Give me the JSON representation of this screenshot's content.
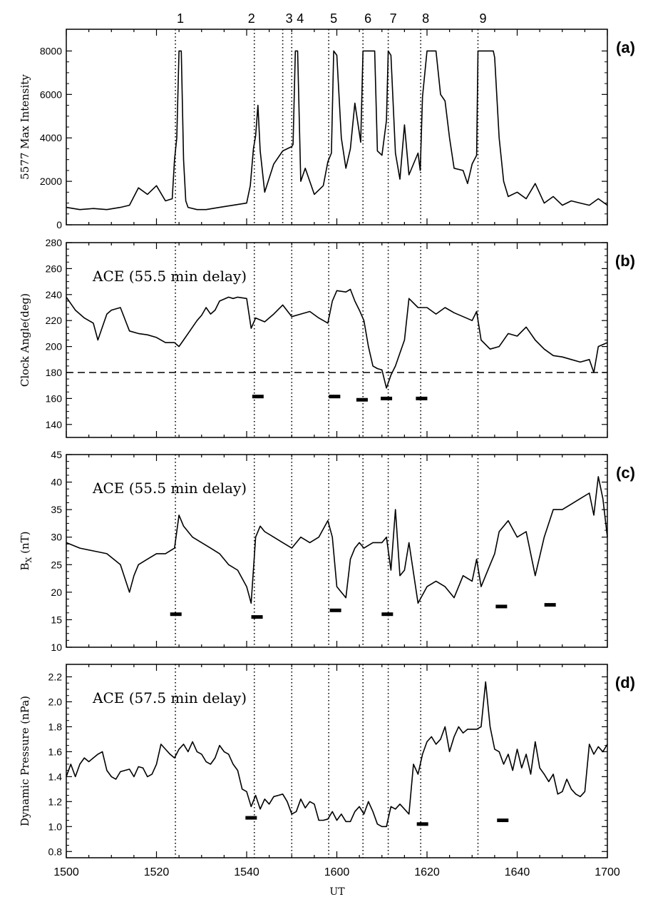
{
  "figure": {
    "event_numbers": [
      "1",
      "2",
      "3",
      "4",
      "5",
      "6",
      "7",
      "8",
      "9"
    ],
    "event_times": [
      1524.2,
      1541.7,
      1548.0,
      1550.0,
      1558.2,
      1605.8,
      1611.4,
      1618.6,
      1631.3
    ],
    "x_axis": {
      "label": "UT",
      "ticks": [
        "1500",
        "1520",
        "1540",
        "1600",
        "1620",
        "1640",
        "1700"
      ]
    }
  },
  "chart_data": [
    {
      "type": "line",
      "panel_label": "(a)",
      "ylabel": "5577 Max Intensity",
      "ylim": [
        0,
        9000
      ],
      "yticks": [
        "0",
        "2000",
        "4000",
        "6000",
        "8000"
      ],
      "grid": false,
      "x": [
        0,
        3,
        6,
        9,
        12,
        14,
        16,
        18,
        20,
        22,
        23.5,
        24,
        24.5,
        25,
        25.5,
        26,
        26.5,
        27,
        29,
        31,
        34,
        37,
        40,
        40.8,
        41.5,
        42,
        42.5,
        43,
        44,
        46,
        48,
        50,
        50.3,
        50.8,
        51.3,
        52,
        53,
        55,
        57,
        58,
        58.8,
        59.3,
        60,
        61,
        62,
        63,
        64,
        65.3,
        65.8,
        66,
        67.5,
        68,
        68.4,
        69,
        70,
        71,
        71.4,
        72,
        73,
        74,
        75,
        76,
        78,
        78.5,
        79,
        80,
        81,
        82,
        83,
        84,
        85,
        86,
        88,
        89,
        90,
        91,
        91.3,
        92,
        93,
        94,
        94.7,
        95,
        96,
        97,
        98,
        100,
        102,
        104,
        106,
        108,
        110,
        112,
        114,
        116,
        118,
        120
      ],
      "values": [
        800,
        700,
        750,
        700,
        800,
        900,
        1700,
        1400,
        1800,
        1100,
        1200,
        3000,
        4000,
        8000,
        8000,
        3000,
        1100,
        800,
        700,
        700,
        800,
        900,
        1000,
        1800,
        3500,
        4100,
        5500,
        3400,
        1500,
        2800,
        3400,
        3600,
        3700,
        8000,
        8000,
        2000,
        2600,
        1400,
        1800,
        2900,
        3300,
        8000,
        7800,
        4000,
        2600,
        3500,
        5600,
        3800,
        8000,
        8000,
        8000,
        8000,
        8000,
        3400,
        3200,
        4800,
        8000,
        7800,
        3300,
        2100,
        4600,
        2300,
        3300,
        2500,
        5900,
        8000,
        8000,
        8000,
        6000,
        5700,
        4000,
        2600,
        2500,
        1900,
        2800,
        3200,
        8000,
        8000,
        8000,
        8000,
        8000,
        7700,
        4000,
        2000,
        1300,
        1500,
        1200,
        1900,
        1000,
        1300,
        900,
        1100,
        1000,
        900,
        1200,
        900
      ]
    },
    {
      "type": "line",
      "panel_label": "(b)",
      "annotation": "ACE (55.5 min delay)",
      "ylabel": "Clock Angle(deg)",
      "ylim": [
        130,
        280
      ],
      "yticks": [
        "140",
        "160",
        "180",
        "200",
        "220",
        "240",
        "260",
        "280"
      ],
      "reference_line": 180,
      "grid": false,
      "x": [
        0,
        2,
        4,
        6,
        7,
        8,
        9,
        10,
        12,
        14,
        16,
        18,
        20,
        22,
        24,
        25,
        26,
        27,
        28,
        29,
        30,
        31,
        32,
        33,
        34,
        36,
        37,
        38,
        40,
        41,
        42,
        44,
        46,
        48,
        50,
        52,
        54,
        56,
        58,
        59,
        60,
        62,
        63,
        64,
        65,
        66,
        67,
        68,
        69,
        70,
        71,
        72,
        73,
        74,
        75,
        76,
        78,
        80,
        82,
        84,
        86,
        88,
        90,
        91,
        92,
        94,
        96,
        98,
        100,
        102,
        104,
        106,
        108,
        110,
        112,
        114,
        116,
        117,
        118,
        120
      ],
      "values": [
        238,
        228,
        222,
        218,
        205,
        215,
        225,
        228,
        230,
        212,
        210,
        209,
        207,
        203,
        203,
        200,
        205,
        210,
        215,
        220,
        224,
        230,
        225,
        228,
        235,
        238,
        237,
        238,
        237,
        214,
        222,
        219,
        225,
        232,
        223,
        225,
        227,
        222,
        218,
        235,
        243,
        242,
        244,
        235,
        228,
        220,
        200,
        185,
        183,
        182,
        168,
        178,
        185,
        195,
        205,
        237,
        230,
        230,
        225,
        230,
        226,
        223,
        220,
        227,
        205,
        198,
        200,
        210,
        208,
        215,
        205,
        198,
        193,
        192,
        190,
        188,
        190,
        180,
        200,
        203
      ]
    },
    {
      "type": "line",
      "panel_label": "(c)",
      "annotation": "ACE (55.5 min delay)",
      "ylabel": "B",
      "ylabel_subscript": "X",
      "ylabel_unit": "(nT)",
      "ylim": [
        10,
        45
      ],
      "yticks": [
        "10",
        "15",
        "20",
        "25",
        "30",
        "35",
        "40",
        "45"
      ],
      "grid": false,
      "x": [
        0,
        3,
        6,
        9,
        12,
        14,
        15,
        16,
        18,
        20,
        22,
        24,
        25,
        26,
        28,
        30,
        32,
        34,
        36,
        38,
        40,
        41,
        42,
        43,
        44,
        46,
        48,
        50,
        52,
        54,
        56,
        58,
        59,
        60,
        61,
        62,
        63,
        64,
        65,
        66,
        68,
        70,
        71,
        72,
        73,
        74,
        75,
        76,
        78,
        80,
        82,
        84,
        86,
        88,
        90,
        91,
        92,
        94,
        95,
        96,
        98,
        100,
        102,
        104,
        106,
        108,
        110,
        112,
        114,
        116,
        117,
        118,
        119,
        120
      ],
      "values": [
        29,
        28,
        27.5,
        27,
        25,
        20,
        23,
        25,
        26,
        27,
        27,
        28,
        34,
        32,
        30,
        29,
        28,
        27,
        25,
        24,
        21,
        18,
        30,
        32,
        31,
        30,
        29,
        28,
        30,
        29,
        30,
        33,
        30,
        21,
        20,
        19,
        26,
        28,
        29,
        28,
        29,
        29,
        30,
        24,
        35,
        23,
        24,
        29,
        18,
        21,
        22,
        21,
        19,
        23,
        22,
        26,
        21,
        25,
        27,
        31,
        33,
        30,
        31,
        23,
        30,
        35,
        35,
        36,
        37,
        38,
        34,
        41,
        37,
        30
      ]
    },
    {
      "type": "line",
      "panel_label": "(d)",
      "annotation": "ACE (57.5 min delay)",
      "ylabel": "Dynamic Pressure (nPa)",
      "ylim": [
        0.75,
        2.3
      ],
      "yticks": [
        "0.8",
        "1.0",
        "1.2",
        "1.4",
        "1.6",
        "1.8",
        "2.0",
        "2.2"
      ],
      "grid": false,
      "x": [
        0,
        1,
        2,
        3,
        4,
        5,
        6,
        7,
        8,
        9,
        10,
        11,
        12,
        13,
        14,
        15,
        16,
        17,
        18,
        19,
        20,
        21,
        22,
        23,
        24,
        25,
        26,
        27,
        28,
        29,
        30,
        31,
        32,
        33,
        34,
        35,
        36,
        37,
        38,
        39,
        40,
        41,
        42,
        43,
        44,
        45,
        46,
        47,
        48,
        49,
        50,
        51,
        52,
        53,
        54,
        55,
        56,
        57,
        58,
        59,
        60,
        61,
        62,
        63,
        64,
        65,
        66,
        67,
        68,
        69,
        70,
        71,
        72,
        73,
        74,
        75,
        76,
        77,
        78,
        79,
        80,
        81,
        82,
        83,
        84,
        85,
        86,
        87,
        88,
        89,
        90,
        91,
        92,
        93,
        94,
        95,
        96,
        97,
        98,
        99,
        100,
        101,
        102,
        103,
        104,
        105,
        106,
        107,
        108,
        109,
        110,
        111,
        112,
        113,
        114,
        115,
        116,
        117,
        118,
        119,
        120
      ],
      "values": [
        1.4,
        1.5,
        1.4,
        1.5,
        1.55,
        1.52,
        1.55,
        1.58,
        1.6,
        1.45,
        1.4,
        1.38,
        1.44,
        1.45,
        1.46,
        1.4,
        1.48,
        1.47,
        1.4,
        1.42,
        1.5,
        1.66,
        1.62,
        1.58,
        1.55,
        1.62,
        1.66,
        1.6,
        1.68,
        1.6,
        1.58,
        1.52,
        1.5,
        1.55,
        1.65,
        1.6,
        1.58,
        1.5,
        1.45,
        1.3,
        1.28,
        1.16,
        1.25,
        1.14,
        1.22,
        1.18,
        1.24,
        1.25,
        1.26,
        1.2,
        1.1,
        1.12,
        1.22,
        1.15,
        1.2,
        1.18,
        1.05,
        1.05,
        1.06,
        1.12,
        1.05,
        1.1,
        1.04,
        1.04,
        1.12,
        1.16,
        1.1,
        1.2,
        1.12,
        1.02,
        1.0,
        1.0,
        1.16,
        1.14,
        1.18,
        1.14,
        1.1,
        1.5,
        1.42,
        1.58,
        1.68,
        1.72,
        1.66,
        1.7,
        1.8,
        1.6,
        1.72,
        1.8,
        1.75,
        1.78,
        1.78,
        1.78,
        1.8,
        2.16,
        1.8,
        1.62,
        1.6,
        1.5,
        1.58,
        1.45,
        1.62,
        1.47,
        1.58,
        1.42,
        1.68,
        1.47,
        1.42,
        1.36,
        1.42,
        1.26,
        1.28,
        1.38,
        1.3,
        1.26,
        1.24,
        1.28,
        1.66,
        1.58,
        1.64,
        1.6,
        1.66
      ]
    }
  ]
}
